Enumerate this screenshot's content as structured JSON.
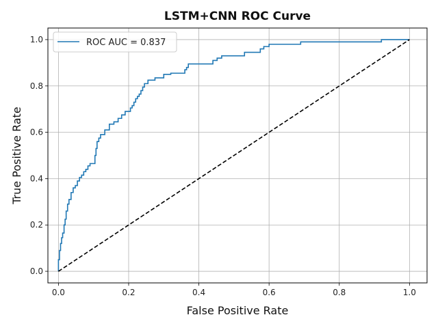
{
  "chart_data": {
    "type": "line",
    "title": "LSTM+CNN ROC Curve",
    "xlabel": "False Positive Rate",
    "ylabel": "True Positive Rate",
    "xlim": [
      -0.03,
      1.05
    ],
    "ylim": [
      -0.05,
      1.05
    ],
    "xticks": [
      "0.0",
      "0.2",
      "0.4",
      "0.6",
      "0.8",
      "1.0"
    ],
    "yticks": [
      "0.0",
      "0.2",
      "0.4",
      "0.6",
      "0.8",
      "1.0"
    ],
    "grid": true,
    "legend_position": "upper-left",
    "colors": {
      "roc": "#1f77b4",
      "chance": "#000000",
      "grid": "#b0b0b0"
    },
    "series": [
      {
        "name": "ROC AUC = 0.837",
        "style": "solid",
        "x": [
          0.0,
          0.0,
          0.003,
          0.003,
          0.006,
          0.006,
          0.009,
          0.009,
          0.012,
          0.012,
          0.016,
          0.016,
          0.019,
          0.019,
          0.022,
          0.022,
          0.026,
          0.026,
          0.03,
          0.03,
          0.036,
          0.036,
          0.042,
          0.042,
          0.048,
          0.048,
          0.054,
          0.054,
          0.06,
          0.06,
          0.066,
          0.066,
          0.072,
          0.072,
          0.078,
          0.078,
          0.084,
          0.084,
          0.09,
          0.09,
          0.104,
          0.104,
          0.107,
          0.107,
          0.11,
          0.11,
          0.115,
          0.115,
          0.12,
          0.12,
          0.132,
          0.132,
          0.145,
          0.145,
          0.158,
          0.158,
          0.17,
          0.17,
          0.18,
          0.18,
          0.19,
          0.19,
          0.205,
          0.205,
          0.21,
          0.21,
          0.215,
          0.215,
          0.22,
          0.22,
          0.225,
          0.225,
          0.23,
          0.23,
          0.235,
          0.235,
          0.24,
          0.24,
          0.245,
          0.245,
          0.255,
          0.255,
          0.275,
          0.275,
          0.3,
          0.3,
          0.32,
          0.32,
          0.36,
          0.36,
          0.365,
          0.365,
          0.37,
          0.37,
          0.44,
          0.44,
          0.452,
          0.452,
          0.465,
          0.465,
          0.53,
          0.53,
          0.575,
          0.575,
          0.585,
          0.585,
          0.6,
          0.6,
          0.69,
          0.69,
          0.92,
          0.92,
          1.0
        ],
        "y": [
          0.0,
          0.05,
          0.05,
          0.09,
          0.09,
          0.12,
          0.12,
          0.145,
          0.145,
          0.165,
          0.165,
          0.2,
          0.2,
          0.225,
          0.225,
          0.26,
          0.26,
          0.29,
          0.29,
          0.31,
          0.31,
          0.34,
          0.34,
          0.36,
          0.36,
          0.37,
          0.37,
          0.39,
          0.39,
          0.405,
          0.405,
          0.415,
          0.415,
          0.43,
          0.43,
          0.44,
          0.44,
          0.455,
          0.455,
          0.465,
          0.465,
          0.5,
          0.5,
          0.53,
          0.53,
          0.56,
          0.56,
          0.575,
          0.575,
          0.59,
          0.59,
          0.61,
          0.61,
          0.635,
          0.635,
          0.645,
          0.645,
          0.66,
          0.66,
          0.675,
          0.675,
          0.69,
          0.69,
          0.705,
          0.705,
          0.715,
          0.715,
          0.73,
          0.73,
          0.745,
          0.745,
          0.755,
          0.755,
          0.765,
          0.765,
          0.78,
          0.78,
          0.795,
          0.795,
          0.81,
          0.81,
          0.825,
          0.825,
          0.835,
          0.835,
          0.85,
          0.85,
          0.855,
          0.855,
          0.87,
          0.87,
          0.88,
          0.88,
          0.895,
          0.895,
          0.91,
          0.91,
          0.92,
          0.92,
          0.93,
          0.93,
          0.945,
          0.945,
          0.96,
          0.96,
          0.97,
          0.97,
          0.98,
          0.98,
          0.99,
          0.99,
          1.0,
          1.0
        ]
      },
      {
        "style": "dashed",
        "x": [
          0.0,
          1.0
        ],
        "y": [
          0.0,
          1.0
        ]
      }
    ]
  }
}
